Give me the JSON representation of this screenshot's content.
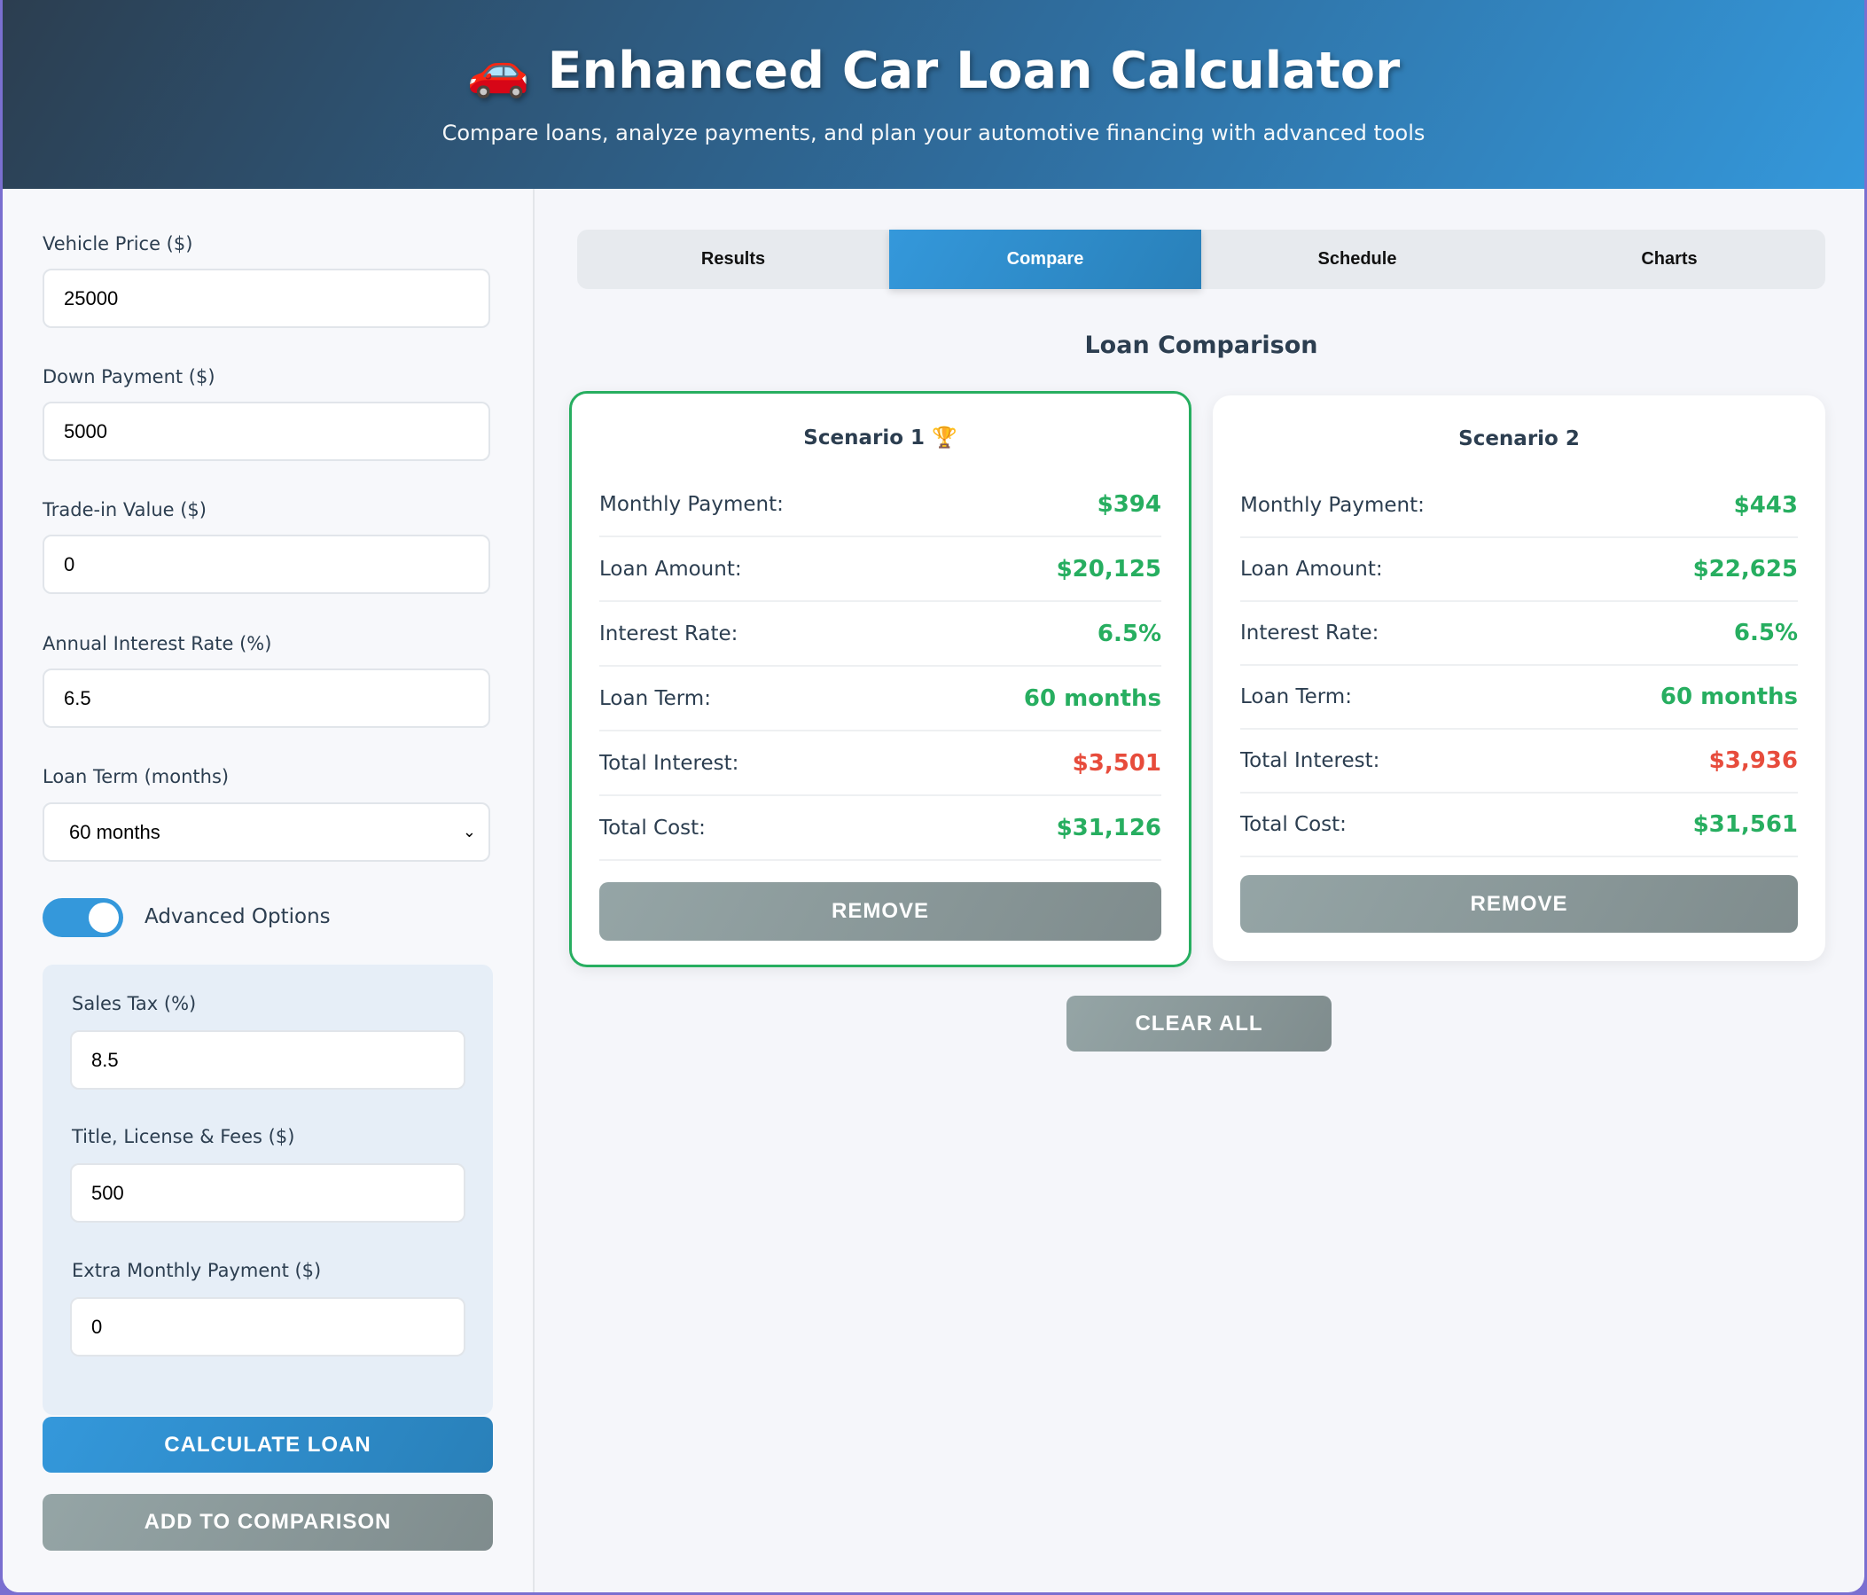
{
  "header": {
    "icon": "🚗",
    "title": "Enhanced Car Loan Calculator",
    "subtitle": "Compare loans, analyze payments, and plan your automotive financing with advanced tools"
  },
  "form": {
    "vehicle_price": {
      "label": "Vehicle Price ($)",
      "value": "25000"
    },
    "down_payment": {
      "label": "Down Payment ($)",
      "value": "5000"
    },
    "trade_in": {
      "label": "Trade-in Value ($)",
      "value": "0"
    },
    "interest_rate": {
      "label": "Annual Interest Rate (%)",
      "value": "6.5"
    },
    "loan_term": {
      "label": "Loan Term (months)",
      "value": "60 months"
    },
    "advanced_toggle": {
      "label": "Advanced Options",
      "on": true
    },
    "sales_tax": {
      "label": "Sales Tax (%)",
      "value": "8.5"
    },
    "fees": {
      "label": "Title, License & Fees ($)",
      "value": "500"
    },
    "extra_payment": {
      "label": "Extra Monthly Payment ($)",
      "value": "0"
    },
    "calculate_label": "CALCULATE LOAN",
    "add_label": "ADD TO COMPARISON"
  },
  "tabs": [
    {
      "label": "Results"
    },
    {
      "label": "Compare",
      "active": true
    },
    {
      "label": "Schedule"
    },
    {
      "label": "Charts"
    }
  ],
  "comparison": {
    "title": "Loan Comparison",
    "scenarios": [
      {
        "name": "Scenario 1",
        "badge": "🏆",
        "rows": [
          {
            "label": "Monthly Payment:",
            "value": "$394"
          },
          {
            "label": "Loan Amount:",
            "value": "$20,125"
          },
          {
            "label": "Interest Rate:",
            "value": "6.5%"
          },
          {
            "label": "Loan Term:",
            "value": "60 months"
          },
          {
            "label": "Total Interest:",
            "value": "$3,501"
          },
          {
            "label": "Total Cost:",
            "value": "$31,126"
          }
        ],
        "remove_label": "REMOVE"
      },
      {
        "name": "Scenario 2",
        "rows": [
          {
            "label": "Monthly Payment:",
            "value": "$443"
          },
          {
            "label": "Loan Amount:",
            "value": "$22,625"
          },
          {
            "label": "Interest Rate:",
            "value": "6.5%"
          },
          {
            "label": "Loan Term:",
            "value": "60 months"
          },
          {
            "label": "Total Interest:",
            "value": "$3,936"
          },
          {
            "label": "Total Cost:",
            "value": "$31,561"
          }
        ],
        "remove_label": "REMOVE"
      }
    ],
    "clear_label": "CLEAR ALL"
  },
  "colors": {
    "accent": "#3498db",
    "good": "#27ae60",
    "bad": "#e74c3c",
    "neutral": "#95a5a6"
  }
}
